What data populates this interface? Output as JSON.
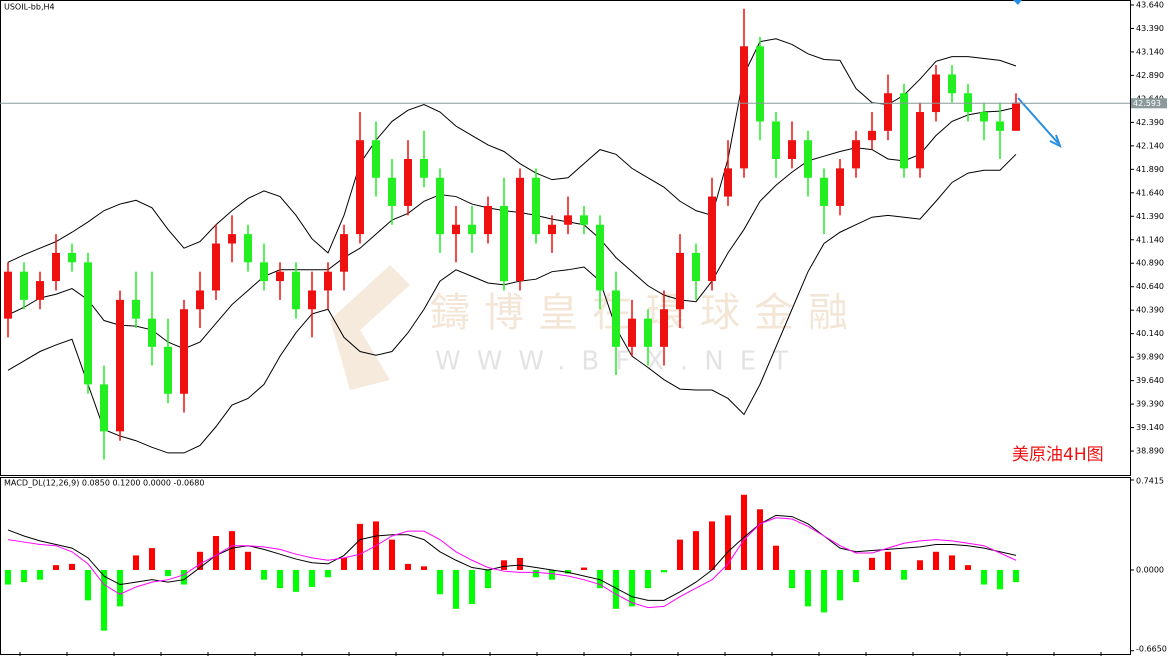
{
  "chart_data": [
    {
      "type": "candlestick",
      "title": "USOIL-bb,H4",
      "annotation": "美原油4H图",
      "watermark": [
        "鑄博皇在環球金融",
        "WWW.BFX.NET"
      ],
      "up_color": "#ee1111",
      "down_color": "#22ee22",
      "band_color": "#000000",
      "current_price": 42.593,
      "ylim": [
        38.635,
        43.693
      ],
      "yticks": [
        {
          "value": 43.64,
          "label": "43.640"
        },
        {
          "value": 43.39,
          "label": "43.390"
        },
        {
          "value": 43.14,
          "label": "43.140"
        },
        {
          "value": 42.89,
          "label": "42.890"
        },
        {
          "value": 42.64,
          "label": "42.640"
        },
        {
          "value": 42.39,
          "label": "42.390"
        },
        {
          "value": 42.14,
          "label": "42.140"
        },
        {
          "value": 41.89,
          "label": "41.890"
        },
        {
          "value": 41.64,
          "label": "41.640"
        },
        {
          "value": 41.39,
          "label": "41.390"
        },
        {
          "value": 41.14,
          "label": "41.140"
        },
        {
          "value": 40.89,
          "label": "40.890"
        },
        {
          "value": 40.64,
          "label": "40.640"
        },
        {
          "value": 40.39,
          "label": "40.390"
        },
        {
          "value": 40.14,
          "label": "40.140"
        },
        {
          "value": 39.89,
          "label": "39.890"
        },
        {
          "value": 39.64,
          "label": "39.640"
        },
        {
          "value": 39.39,
          "label": "39.390"
        },
        {
          "value": 39.14,
          "label": "39.140"
        },
        {
          "value": 38.89,
          "label": "38.890"
        }
      ],
      "candles": [
        [
          40.3,
          40.9,
          40.1,
          40.8
        ],
        [
          40.8,
          40.9,
          40.4,
          40.5
        ],
        [
          40.5,
          40.8,
          40.4,
          40.7
        ],
        [
          40.7,
          41.2,
          40.6,
          41.0
        ],
        [
          41.0,
          41.1,
          40.8,
          40.9
        ],
        [
          40.9,
          41.0,
          39.5,
          39.6
        ],
        [
          39.6,
          39.8,
          38.8,
          39.1
        ],
        [
          39.1,
          40.6,
          39.0,
          40.5
        ],
        [
          40.5,
          40.8,
          40.2,
          40.3
        ],
        [
          40.3,
          40.8,
          39.8,
          40.0
        ],
        [
          40.0,
          40.3,
          39.4,
          39.5
        ],
        [
          39.5,
          40.5,
          39.3,
          40.4
        ],
        [
          40.4,
          40.8,
          40.2,
          40.6
        ],
        [
          40.6,
          41.3,
          40.5,
          41.1
        ],
        [
          41.1,
          41.4,
          40.9,
          41.2
        ],
        [
          41.2,
          41.3,
          40.8,
          40.9
        ],
        [
          40.9,
          41.1,
          40.6,
          40.7
        ],
        [
          40.7,
          40.9,
          40.5,
          40.8
        ],
        [
          40.8,
          40.9,
          40.3,
          40.4
        ],
        [
          40.4,
          40.8,
          40.1,
          40.6
        ],
        [
          40.6,
          40.9,
          40.4,
          40.8
        ],
        [
          40.8,
          41.3,
          40.6,
          41.2
        ],
        [
          41.2,
          42.5,
          41.1,
          42.2
        ],
        [
          42.2,
          42.4,
          41.6,
          41.8
        ],
        [
          41.8,
          42.0,
          41.3,
          41.5
        ],
        [
          41.5,
          42.2,
          41.4,
          42.0
        ],
        [
          42.0,
          42.3,
          41.7,
          41.8
        ],
        [
          41.8,
          41.9,
          41.0,
          41.2
        ],
        [
          41.2,
          41.5,
          40.9,
          41.3
        ],
        [
          41.3,
          41.5,
          41.0,
          41.2
        ],
        [
          41.2,
          41.6,
          41.1,
          41.5
        ],
        [
          41.5,
          41.8,
          40.6,
          40.7
        ],
        [
          40.7,
          41.9,
          40.6,
          41.8
        ],
        [
          41.8,
          41.9,
          41.1,
          41.2
        ],
        [
          41.2,
          41.4,
          41.0,
          41.3
        ],
        [
          41.3,
          41.6,
          41.2,
          41.4
        ],
        [
          41.4,
          41.5,
          41.2,
          41.3
        ],
        [
          41.3,
          41.4,
          40.4,
          40.6
        ],
        [
          40.6,
          40.8,
          39.7,
          40.0
        ],
        [
          40.0,
          40.5,
          39.9,
          40.3
        ],
        [
          40.3,
          40.4,
          39.8,
          40.0
        ],
        [
          40.0,
          40.6,
          39.8,
          40.4
        ],
        [
          40.4,
          41.2,
          40.2,
          41.0
        ],
        [
          41.0,
          41.1,
          40.5,
          40.7
        ],
        [
          40.7,
          41.8,
          40.6,
          41.6
        ],
        [
          41.6,
          42.2,
          41.5,
          41.9
        ],
        [
          41.9,
          43.6,
          41.8,
          43.2
        ],
        [
          43.2,
          43.3,
          42.2,
          42.4
        ],
        [
          42.4,
          42.5,
          41.8,
          42.0
        ],
        [
          42.0,
          42.4,
          41.9,
          42.2
        ],
        [
          42.2,
          42.3,
          41.6,
          41.8
        ],
        [
          41.8,
          41.9,
          41.2,
          41.5
        ],
        [
          41.5,
          42.0,
          41.4,
          41.9
        ],
        [
          41.9,
          42.3,
          41.8,
          42.2
        ],
        [
          42.2,
          42.5,
          42.1,
          42.3
        ],
        [
          42.3,
          42.9,
          42.2,
          42.7
        ],
        [
          42.7,
          42.8,
          41.8,
          41.9
        ],
        [
          41.9,
          42.6,
          41.8,
          42.5
        ],
        [
          42.5,
          43.0,
          42.4,
          42.9
        ],
        [
          42.9,
          43.0,
          42.6,
          42.7
        ],
        [
          42.7,
          42.8,
          42.4,
          42.5
        ],
        [
          42.5,
          42.6,
          42.2,
          42.4
        ],
        [
          42.4,
          42.6,
          42.0,
          42.3
        ],
        [
          42.3,
          42.7,
          42.3,
          42.6
        ]
      ],
      "bands": {
        "upper": [
          40.9,
          40.98,
          41.05,
          41.12,
          41.22,
          41.33,
          41.45,
          41.52,
          41.56,
          41.48,
          41.25,
          41.05,
          41.12,
          41.3,
          41.45,
          41.58,
          41.66,
          41.6,
          41.4,
          41.15,
          41.0,
          41.4,
          41.95,
          42.2,
          42.4,
          42.52,
          42.58,
          42.5,
          42.35,
          42.25,
          42.15,
          42.08,
          41.95,
          41.85,
          41.78,
          41.8,
          41.95,
          42.1,
          42.05,
          41.9,
          41.8,
          41.7,
          41.55,
          41.45,
          41.4,
          42.0,
          42.9,
          43.25,
          43.28,
          43.22,
          43.12,
          43.06,
          43.05,
          42.75,
          42.6,
          42.58,
          42.68,
          42.85,
          43.04,
          43.09,
          43.09,
          43.07,
          43.05,
          42.99
        ],
        "middle": [
          40.34,
          40.42,
          40.52,
          40.56,
          40.62,
          40.5,
          40.28,
          40.23,
          40.22,
          40.18,
          40.05,
          39.98,
          40.05,
          40.25,
          40.45,
          40.6,
          40.75,
          40.82,
          40.82,
          40.82,
          40.82,
          40.95,
          41.05,
          41.2,
          41.35,
          41.42,
          41.55,
          41.62,
          41.6,
          41.52,
          41.48,
          41.45,
          41.43,
          41.4,
          41.36,
          41.33,
          41.3,
          41.15,
          40.95,
          40.8,
          40.65,
          40.55,
          40.5,
          40.48,
          40.7,
          41.0,
          41.25,
          41.55,
          41.72,
          41.86,
          41.98,
          42.03,
          42.08,
          42.12,
          42.1,
          42.0,
          41.98,
          42.05,
          42.25,
          42.4,
          42.47,
          42.5,
          42.51,
          42.55
        ],
        "lower": [
          39.75,
          39.85,
          39.95,
          40.02,
          40.08,
          39.6,
          39.12,
          39.05,
          39.0,
          38.93,
          38.87,
          38.87,
          38.95,
          39.15,
          39.38,
          39.45,
          39.6,
          39.9,
          40.15,
          40.35,
          40.4,
          40.1,
          39.95,
          39.91,
          39.95,
          40.15,
          40.4,
          40.7,
          40.82,
          40.75,
          40.68,
          40.66,
          40.7,
          40.72,
          40.8,
          40.82,
          40.85,
          40.7,
          40.2,
          39.9,
          39.78,
          39.65,
          39.55,
          39.54,
          39.54,
          39.45,
          39.28,
          39.6,
          40.0,
          40.4,
          40.8,
          41.1,
          41.22,
          41.3,
          41.38,
          41.4,
          41.38,
          41.36,
          41.55,
          41.75,
          41.85,
          41.88,
          41.88,
          42.05
        ]
      }
    },
    {
      "type": "macd",
      "title": "MACD_DL(12,26,9) 0.0850 0.1200 0.0000 -0.0680",
      "pos_color": "#ff0000",
      "neg_color": "#00ff00",
      "macd_color": "#000000",
      "signal_color": "#ff00ff",
      "ylim": [
        -0.684,
        0.766
      ],
      "yticks": [
        0.7415,
        {
          "value": 0,
          "label": "0.0000"
        },
        {
          "value": -0.665,
          "label": "-0.6650"
        }
      ],
      "histogram": [
        -0.12,
        -0.1,
        -0.08,
        0.04,
        0.05,
        -0.25,
        -0.5,
        -0.3,
        0.12,
        0.18,
        -0.05,
        -0.12,
        0.15,
        0.28,
        0.32,
        0.15,
        -0.08,
        -0.15,
        -0.18,
        -0.14,
        -0.06,
        0.1,
        0.38,
        0.4,
        0.25,
        0.05,
        0.03,
        -0.2,
        -0.32,
        -0.28,
        -0.15,
        0.08,
        0.1,
        -0.06,
        -0.08,
        -0.03,
        0.02,
        -0.15,
        -0.32,
        -0.3,
        -0.15,
        -0.02,
        0.25,
        0.32,
        0.4,
        0.45,
        0.62,
        0.5,
        0.2,
        -0.15,
        -0.3,
        -0.35,
        -0.25,
        -0.1,
        0.1,
        0.15,
        -0.08,
        0.08,
        0.15,
        0.12,
        0.04,
        -0.12,
        -0.16,
        -0.1
      ],
      "macd": [
        0.33,
        0.28,
        0.24,
        0.21,
        0.18,
        0.1,
        -0.05,
        -0.12,
        -0.1,
        -0.08,
        -0.1,
        -0.08,
        0.02,
        0.12,
        0.18,
        0.2,
        0.17,
        0.13,
        0.09,
        0.06,
        0.05,
        0.12,
        0.25,
        0.28,
        0.29,
        0.29,
        0.25,
        0.15,
        0.08,
        0.02,
        0.0,
        0.03,
        0.04,
        0.02,
        0.0,
        -0.02,
        -0.05,
        -0.08,
        -0.15,
        -0.22,
        -0.25,
        -0.25,
        -0.18,
        -0.1,
        0.0,
        0.15,
        0.27,
        0.38,
        0.45,
        0.44,
        0.38,
        0.28,
        0.18,
        0.15,
        0.16,
        0.17,
        0.18,
        0.19,
        0.21,
        0.21,
        0.2,
        0.18,
        0.15,
        0.12
      ],
      "signal": [
        0.25,
        0.23,
        0.21,
        0.2,
        0.15,
        0.05,
        -0.12,
        -0.2,
        -0.14,
        -0.1,
        -0.08,
        -0.04,
        0.05,
        0.12,
        0.2,
        0.2,
        0.19,
        0.17,
        0.13,
        0.1,
        0.08,
        0.1,
        0.13,
        0.2,
        0.28,
        0.32,
        0.32,
        0.25,
        0.15,
        0.08,
        0.02,
        -0.01,
        -0.02,
        -0.02,
        -0.03,
        -0.05,
        -0.08,
        -0.12,
        -0.2,
        -0.27,
        -0.31,
        -0.3,
        -0.22,
        -0.15,
        -0.08,
        0.05,
        0.25,
        0.38,
        0.43,
        0.42,
        0.36,
        0.28,
        0.2,
        0.14,
        0.14,
        0.18,
        0.22,
        0.24,
        0.25,
        0.24,
        0.22,
        0.2,
        0.14,
        0.08
      ]
    }
  ]
}
